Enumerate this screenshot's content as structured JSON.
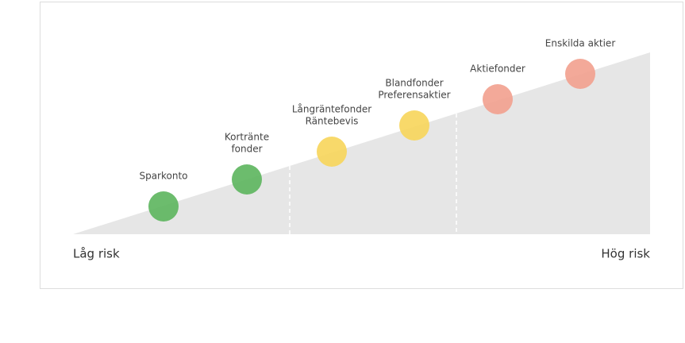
{
  "diagram": {
    "low_label": "Låg risk",
    "high_label": "Hög risk",
    "nodes": [
      {
        "lines": [
          "Sparkonto"
        ],
        "color": "#5cb55d"
      },
      {
        "lines": [
          "Kortränte",
          "fonder"
        ],
        "color": "#5cb55d"
      },
      {
        "lines": [
          "Långräntefonder",
          "Räntebevis"
        ],
        "color": "#f7d55a"
      },
      {
        "lines": [
          "Blandfonder",
          "Preferensaktier"
        ],
        "color": "#f7d55a"
      },
      {
        "lines": [
          "Aktiefonder"
        ],
        "color": "#f2a08e"
      },
      {
        "lines": [
          "Enskilda aktier"
        ],
        "color": "#f2a08e"
      }
    ]
  }
}
